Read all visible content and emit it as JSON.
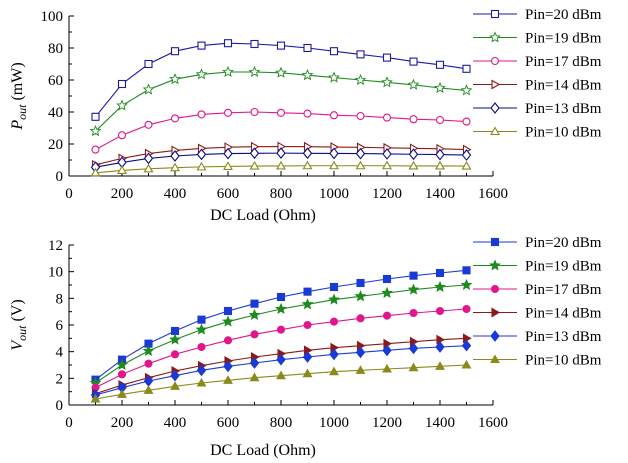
{
  "chart_data": [
    {
      "type": "line",
      "marker_style": "open",
      "xlabel": "DC Load (Ohm)",
      "ylabel": {
        "main": "P",
        "sub": "out",
        "unit": " (mW)"
      },
      "xlim": [
        0,
        1600
      ],
      "ylim": [
        0,
        100
      ],
      "xticks": [
        0,
        200,
        400,
        600,
        800,
        1000,
        1200,
        1400,
        1600
      ],
      "yticks": [
        0,
        20,
        40,
        60,
        80,
        100
      ],
      "legend_position": "right",
      "x": [
        100,
        200,
        300,
        400,
        500,
        600,
        700,
        800,
        900,
        1000,
        1100,
        1200,
        1300,
        1400,
        1500
      ],
      "series": [
        {
          "name": "Pin=20 dBm",
          "color": "#1a1aa6",
          "marker": "square",
          "values": [
            37,
            57.5,
            70,
            78,
            81.5,
            83,
            82.5,
            81.5,
            80,
            78,
            76,
            74,
            71.5,
            69.5,
            67
          ]
        },
        {
          "name": "Pin=19 dBm",
          "color": "#1f8a1f",
          "marker": "star",
          "values": [
            28,
            44,
            54,
            60.5,
            63.5,
            65,
            65,
            64.5,
            63,
            61.5,
            60,
            58.5,
            57,
            55,
            53.5
          ]
        },
        {
          "name": "Pin=17 dBm",
          "color": "#e0168a",
          "marker": "circle",
          "values": [
            16.5,
            25.5,
            32,
            36,
            38.5,
            39.5,
            40,
            39.5,
            39,
            38,
            37.5,
            36.5,
            35.5,
            35,
            34
          ]
        },
        {
          "name": "Pin=14 dBm",
          "color": "#8b1a1a",
          "marker": "triangle-right",
          "values": [
            7,
            11,
            14,
            16,
            17.2,
            18,
            18.3,
            18.4,
            18.3,
            18.1,
            17.9,
            17.6,
            17.3,
            17,
            16.5
          ]
        },
        {
          "name": "Pin=13 dBm",
          "color": "#0a0a8a",
          "marker": "diamond",
          "values": [
            5.5,
            8.5,
            11,
            12.5,
            13.5,
            14,
            14.2,
            14.3,
            14.2,
            14.1,
            14,
            13.8,
            13.6,
            13.4,
            13.1
          ]
        },
        {
          "name": "Pin=10 dBm",
          "color": "#8a8a1a",
          "marker": "triangle-up",
          "values": [
            2,
            3.5,
            4.5,
            5.2,
            5.7,
            6,
            6.2,
            6.3,
            6.4,
            6.4,
            6.4,
            6.4,
            6.3,
            6.3,
            6.2
          ]
        }
      ]
    },
    {
      "type": "line",
      "marker_style": "filled",
      "xlabel": "DC Load (Ohm)",
      "ylabel": {
        "main": "V",
        "sub": "out",
        "unit": " (V)"
      },
      "xlim": [
        0,
        1600
      ],
      "ylim": [
        0,
        12
      ],
      "xticks": [
        0,
        200,
        400,
        600,
        800,
        1000,
        1200,
        1400,
        1600
      ],
      "yticks": [
        0,
        2,
        4,
        6,
        8,
        10,
        12
      ],
      "legend_position": "right",
      "x": [
        100,
        200,
        300,
        400,
        500,
        600,
        700,
        800,
        900,
        1000,
        1100,
        1200,
        1300,
        1400,
        1500
      ],
      "series": [
        {
          "name": "Pin=20 dBm",
          "color": "#1a3ad6",
          "marker": "square",
          "values": [
            1.9,
            3.4,
            4.6,
            5.55,
            6.4,
            7.05,
            7.6,
            8.1,
            8.5,
            8.85,
            9.15,
            9.45,
            9.7,
            9.9,
            10.1
          ]
        },
        {
          "name": "Pin=19 dBm",
          "color": "#1f8a1f",
          "marker": "star",
          "values": [
            1.65,
            3.0,
            4.05,
            4.9,
            5.65,
            6.25,
            6.75,
            7.2,
            7.55,
            7.9,
            8.15,
            8.4,
            8.65,
            8.85,
            9.0
          ]
        },
        {
          "name": "Pin=17 dBm",
          "color": "#e0168a",
          "marker": "circle",
          "values": [
            1.3,
            2.3,
            3.1,
            3.8,
            4.35,
            4.85,
            5.3,
            5.65,
            6.0,
            6.25,
            6.5,
            6.7,
            6.9,
            7.05,
            7.2
          ]
        },
        {
          "name": "Pin=14 dBm",
          "color": "#8b1a1a",
          "marker": "triangle-right",
          "values": [
            0.85,
            1.5,
            2.05,
            2.55,
            2.95,
            3.3,
            3.6,
            3.85,
            4.1,
            4.3,
            4.45,
            4.6,
            4.75,
            4.9,
            5.0
          ]
        },
        {
          "name": "Pin=13 dBm",
          "color": "#1a3ad6",
          "marker": "diamond",
          "values": [
            0.75,
            1.3,
            1.8,
            2.2,
            2.6,
            2.9,
            3.15,
            3.4,
            3.6,
            3.8,
            3.95,
            4.1,
            4.25,
            4.35,
            4.45
          ]
        },
        {
          "name": "Pin=10 dBm",
          "color": "#8a8a1a",
          "marker": "triangle-up",
          "values": [
            0.45,
            0.8,
            1.1,
            1.4,
            1.65,
            1.85,
            2.05,
            2.2,
            2.35,
            2.5,
            2.6,
            2.7,
            2.8,
            2.9,
            3.0
          ]
        }
      ]
    }
  ]
}
